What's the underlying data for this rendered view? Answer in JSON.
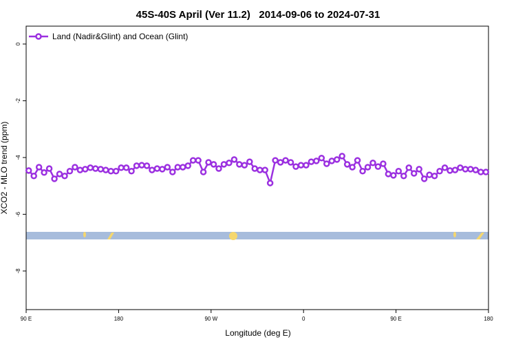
{
  "chart_data": {
    "type": "line",
    "title": "45S-40S April (Ver 11.2)   2014-09-06 to 2024-07-31",
    "xlabel": "Longitude (deg E)",
    "ylabel": "XCO2 - MLO trend (ppm)",
    "xlim": [
      90,
      540
    ],
    "ylim": [
      -9.36,
      0.63
    ],
    "xticks": [
      {
        "value": 90,
        "label": "90 E"
      },
      {
        "value": 180,
        "label": "180"
      },
      {
        "value": 270,
        "label": "90 W"
      },
      {
        "value": 360,
        "label": "0"
      },
      {
        "value": 450,
        "label": "90 E"
      },
      {
        "value": 540,
        "label": "180"
      }
    ],
    "yticks": [
      -8,
      -6,
      -4,
      -2,
      0
    ],
    "legend": "upper left",
    "x": [
      92.5,
      97.5,
      102.5,
      107.5,
      112.5,
      117.5,
      122.5,
      127.5,
      132.5,
      137.5,
      142.5,
      147.5,
      152.5,
      157.5,
      162.5,
      167.5,
      172.5,
      177.5,
      182.5,
      187.5,
      192.5,
      197.5,
      202.5,
      207.5,
      212.5,
      217.5,
      222.5,
      227.5,
      232.5,
      237.5,
      242.5,
      247.5,
      252.5,
      257.5,
      262.5,
      267.5,
      272.5,
      277.5,
      282.5,
      287.5,
      292.5,
      297.5,
      302.5,
      307.5,
      312.5,
      317.5,
      322.5,
      327.5,
      332.5,
      337.5,
      342.5,
      347.5,
      352.5,
      357.5,
      362.5,
      367.5,
      372.5,
      377.5,
      382.5,
      387.5,
      392.5,
      397.5,
      402.5,
      407.5,
      412.5,
      417.5,
      422.5,
      427.5,
      432.5,
      437.5,
      442.5,
      447.5,
      452.5,
      457.5,
      462.5,
      467.5,
      472.5,
      477.5,
      482.5,
      487.5,
      492.5,
      497.5,
      502.5,
      507.5,
      512.5,
      517.5,
      522.5,
      527.5,
      532.5,
      537.5
    ],
    "series": [
      {
        "name": "Land (Nadir&Glint) and Ocean (Glint)",
        "color": "#9b30e0",
        "values": [
          -4.46,
          -4.65,
          -4.34,
          -4.53,
          -4.39,
          -4.75,
          -4.58,
          -4.65,
          -4.48,
          -4.34,
          -4.44,
          -4.41,
          -4.36,
          -4.39,
          -4.41,
          -4.44,
          -4.48,
          -4.48,
          -4.36,
          -4.36,
          -4.48,
          -4.29,
          -4.27,
          -4.29,
          -4.44,
          -4.39,
          -4.41,
          -4.34,
          -4.51,
          -4.34,
          -4.34,
          -4.29,
          -4.1,
          -4.1,
          -4.51,
          -4.17,
          -4.24,
          -4.39,
          -4.24,
          -4.19,
          -4.07,
          -4.24,
          -4.27,
          -4.15,
          -4.39,
          -4.44,
          -4.44,
          -4.9,
          -4.1,
          -4.17,
          -4.1,
          -4.17,
          -4.32,
          -4.27,
          -4.27,
          -4.15,
          -4.12,
          -4.02,
          -4.22,
          -4.12,
          -4.07,
          -3.95,
          -4.24,
          -4.34,
          -4.1,
          -4.48,
          -4.34,
          -4.19,
          -4.32,
          -4.22,
          -4.58,
          -4.63,
          -4.48,
          -4.65,
          -4.36,
          -4.56,
          -4.41,
          -4.75,
          -4.61,
          -4.65,
          -4.48,
          -4.36,
          -4.46,
          -4.44,
          -4.36,
          -4.41,
          -4.41,
          -4.44,
          -4.51,
          -4.51
        ]
      }
    ]
  }
}
